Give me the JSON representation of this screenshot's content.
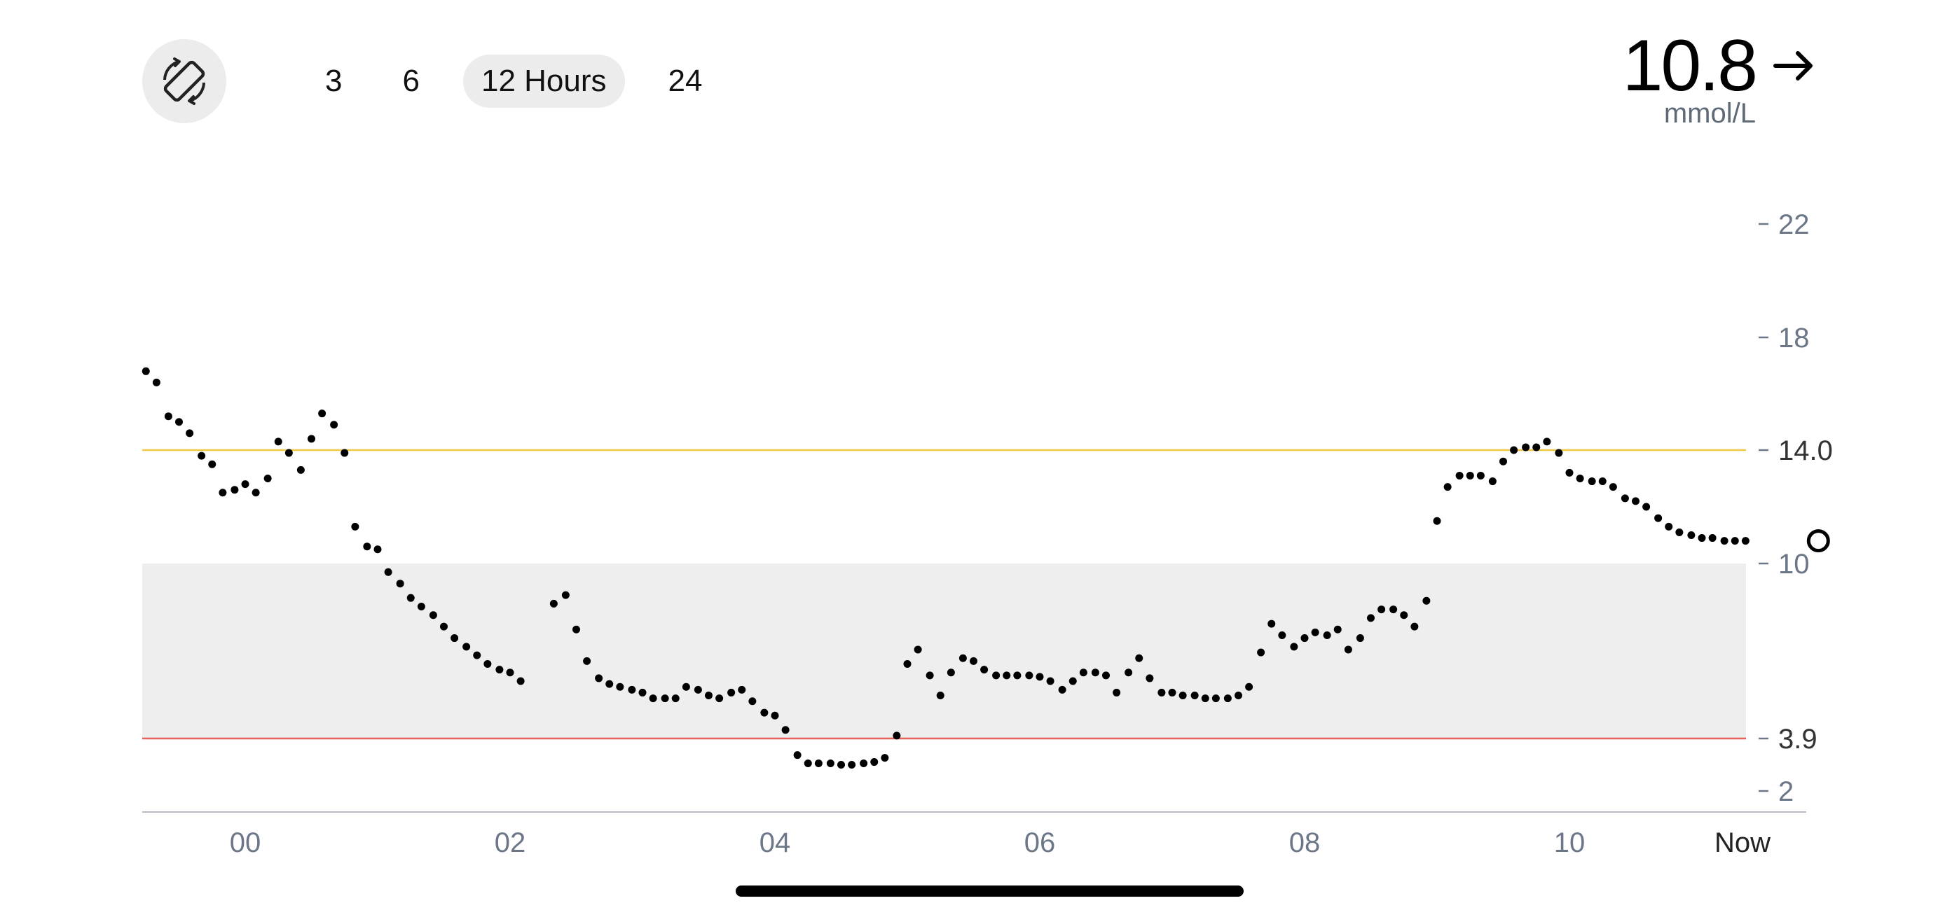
{
  "header": {
    "rotate_icon": "screen-rotation-icon",
    "ranges": [
      {
        "label": "3",
        "active": false
      },
      {
        "label": "6",
        "active": false
      },
      {
        "label": "12 Hours",
        "active": true
      },
      {
        "label": "24",
        "active": false
      }
    ],
    "current_value": "10.8",
    "unit": "mmol/L",
    "trend_icon": "arrow-right-icon"
  },
  "colors": {
    "high_line": "#f2c744",
    "low_line": "#e8605a",
    "target_band": "#eeeeee",
    "points": "#000000"
  },
  "chart_data": {
    "type": "scatter",
    "x_unit": "hours",
    "x_tick_labels": [
      "00",
      "02",
      "04",
      "06",
      "08",
      "10",
      "Now"
    ],
    "y_tick_labels": [
      "22",
      "18",
      "14.0",
      "10",
      "3.9",
      "2"
    ],
    "y_ticks": [
      22,
      18,
      14,
      10,
      3.9,
      2
    ],
    "high_threshold": 14.0,
    "low_threshold": 3.9,
    "target_range": [
      3.9,
      10
    ],
    "current_point": {
      "x": 11.88,
      "y": 10.8
    },
    "points": [
      [
        -0.75,
        16.8
      ],
      [
        -0.67,
        16.4
      ],
      [
        -0.58,
        15.2
      ],
      [
        -0.5,
        15.0
      ],
      [
        -0.42,
        14.6
      ],
      [
        -0.33,
        13.8
      ],
      [
        -0.25,
        13.5
      ],
      [
        -0.17,
        12.5
      ],
      [
        -0.08,
        12.6
      ],
      [
        0.0,
        12.8
      ],
      [
        0.08,
        12.5
      ],
      [
        0.17,
        13.0
      ],
      [
        0.25,
        14.3
      ],
      [
        0.33,
        13.9
      ],
      [
        0.42,
        13.3
      ],
      [
        0.5,
        14.4
      ],
      [
        0.58,
        15.3
      ],
      [
        0.67,
        14.9
      ],
      [
        0.75,
        13.9
      ],
      [
        0.83,
        11.3
      ],
      [
        0.92,
        10.6
      ],
      [
        1.0,
        10.5
      ],
      [
        1.08,
        9.7
      ],
      [
        1.17,
        9.3
      ],
      [
        1.25,
        8.8
      ],
      [
        1.33,
        8.5
      ],
      [
        1.42,
        8.2
      ],
      [
        1.5,
        7.8
      ],
      [
        1.58,
        7.4
      ],
      [
        1.67,
        7.1
      ],
      [
        1.75,
        6.8
      ],
      [
        1.83,
        6.5
      ],
      [
        1.92,
        6.3
      ],
      [
        2.0,
        6.2
      ],
      [
        2.08,
        5.9
      ],
      [
        2.33,
        8.6
      ],
      [
        2.42,
        8.9
      ],
      [
        2.5,
        7.7
      ],
      [
        2.58,
        6.6
      ],
      [
        2.67,
        6.0
      ],
      [
        2.75,
        5.8
      ],
      [
        2.83,
        5.7
      ],
      [
        2.92,
        5.6
      ],
      [
        3.0,
        5.5
      ],
      [
        3.08,
        5.3
      ],
      [
        3.17,
        5.3
      ],
      [
        3.25,
        5.3
      ],
      [
        3.33,
        5.7
      ],
      [
        3.42,
        5.6
      ],
      [
        3.5,
        5.4
      ],
      [
        3.58,
        5.3
      ],
      [
        3.67,
        5.5
      ],
      [
        3.75,
        5.6
      ],
      [
        3.83,
        5.2
      ],
      [
        3.92,
        4.8
      ],
      [
        4.0,
        4.7
      ],
      [
        4.08,
        4.2
      ],
      [
        4.17,
        3.3
      ],
      [
        4.25,
        3.0
      ],
      [
        4.33,
        3.0
      ],
      [
        4.42,
        3.0
      ],
      [
        4.5,
        2.95
      ],
      [
        4.58,
        2.95
      ],
      [
        4.67,
        3.0
      ],
      [
        4.75,
        3.05
      ],
      [
        4.83,
        3.2
      ],
      [
        4.92,
        4.0
      ],
      [
        5.0,
        6.5
      ],
      [
        5.08,
        7.0
      ],
      [
        5.17,
        6.1
      ],
      [
        5.25,
        5.4
      ],
      [
        5.33,
        6.2
      ],
      [
        5.42,
        6.7
      ],
      [
        5.5,
        6.6
      ],
      [
        5.58,
        6.3
      ],
      [
        5.67,
        6.1
      ],
      [
        5.75,
        6.1
      ],
      [
        5.83,
        6.1
      ],
      [
        5.92,
        6.1
      ],
      [
        6.0,
        6.05
      ],
      [
        6.08,
        5.9
      ],
      [
        6.17,
        5.6
      ],
      [
        6.25,
        5.9
      ],
      [
        6.33,
        6.2
      ],
      [
        6.42,
        6.2
      ],
      [
        6.5,
        6.1
      ],
      [
        6.58,
        5.5
      ],
      [
        6.67,
        6.2
      ],
      [
        6.75,
        6.7
      ],
      [
        6.83,
        6.0
      ],
      [
        6.92,
        5.5
      ],
      [
        7.0,
        5.5
      ],
      [
        7.08,
        5.4
      ],
      [
        7.17,
        5.4
      ],
      [
        7.25,
        5.3
      ],
      [
        7.33,
        5.3
      ],
      [
        7.42,
        5.3
      ],
      [
        7.5,
        5.4
      ],
      [
        7.58,
        5.7
      ],
      [
        7.67,
        6.9
      ],
      [
        7.75,
        7.9
      ],
      [
        7.83,
        7.5
      ],
      [
        7.92,
        7.1
      ],
      [
        8.0,
        7.4
      ],
      [
        8.08,
        7.6
      ],
      [
        8.17,
        7.5
      ],
      [
        8.25,
        7.7
      ],
      [
        8.33,
        7.0
      ],
      [
        8.42,
        7.4
      ],
      [
        8.5,
        8.1
      ],
      [
        8.58,
        8.4
      ],
      [
        8.67,
        8.4
      ],
      [
        8.75,
        8.2
      ],
      [
        8.83,
        7.8
      ],
      [
        8.92,
        8.7
      ],
      [
        9.0,
        11.5
      ],
      [
        9.08,
        12.7
      ],
      [
        9.17,
        13.1
      ],
      [
        9.25,
        13.1
      ],
      [
        9.33,
        13.1
      ],
      [
        9.42,
        12.9
      ],
      [
        9.5,
        13.6
      ],
      [
        9.58,
        14.0
      ],
      [
        9.67,
        14.1
      ],
      [
        9.75,
        14.1
      ],
      [
        9.83,
        14.3
      ],
      [
        9.92,
        13.9
      ],
      [
        10.0,
        13.2
      ],
      [
        10.08,
        13.0
      ],
      [
        10.17,
        12.9
      ],
      [
        10.25,
        12.9
      ],
      [
        10.33,
        12.7
      ],
      [
        10.42,
        12.3
      ],
      [
        10.5,
        12.2
      ],
      [
        10.58,
        12.0
      ],
      [
        10.67,
        11.6
      ],
      [
        10.75,
        11.3
      ],
      [
        10.83,
        11.1
      ],
      [
        10.92,
        11.0
      ],
      [
        11.0,
        10.9
      ],
      [
        11.08,
        10.9
      ],
      [
        11.17,
        10.8
      ],
      [
        11.25,
        10.8
      ],
      [
        11.33,
        10.8
      ]
    ]
  }
}
